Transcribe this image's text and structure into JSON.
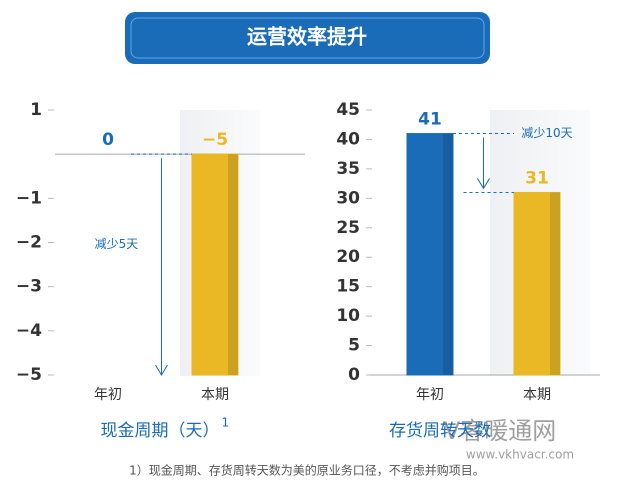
{
  "header": {
    "title": "运营效率提升"
  },
  "chart_data": [
    {
      "type": "bar",
      "title": "现金周期（天）",
      "footnote_ref": "1",
      "categories": [
        "年初",
        "本期"
      ],
      "values": [
        0,
        -5
      ],
      "value_labels": [
        "0",
        "−5"
      ],
      "colors": [
        "#1a6cb8",
        "#e9b824"
      ],
      "ylim": [
        -5,
        1
      ],
      "yticks": [
        1,
        {
          "value": -1,
          "label": "−1"
        },
        {
          "value": -2,
          "label": "−2"
        },
        {
          "value": -3,
          "label": "−3"
        },
        {
          "value": -4,
          "label": "−4"
        },
        {
          "value": -5,
          "label": "−5"
        }
      ],
      "annotation": "减少5天"
    },
    {
      "type": "bar",
      "title": "存货周转天数",
      "categories": [
        "年初",
        "本期"
      ],
      "values": [
        41,
        31
      ],
      "colors": [
        "#1a6cb8",
        "#e9b824"
      ],
      "ylim": [
        0,
        45
      ],
      "yticks": [
        0,
        5,
        10,
        15,
        20,
        25,
        30,
        35,
        40,
        45
      ],
      "annotation": "减少10天"
    }
  ],
  "footnote": "1）现金周期、存货周转天数为美的原业务口径，不考虑并购项目。",
  "watermark": {
    "brand": "V客暖通网",
    "url": "www.vkhvacr.com"
  }
}
